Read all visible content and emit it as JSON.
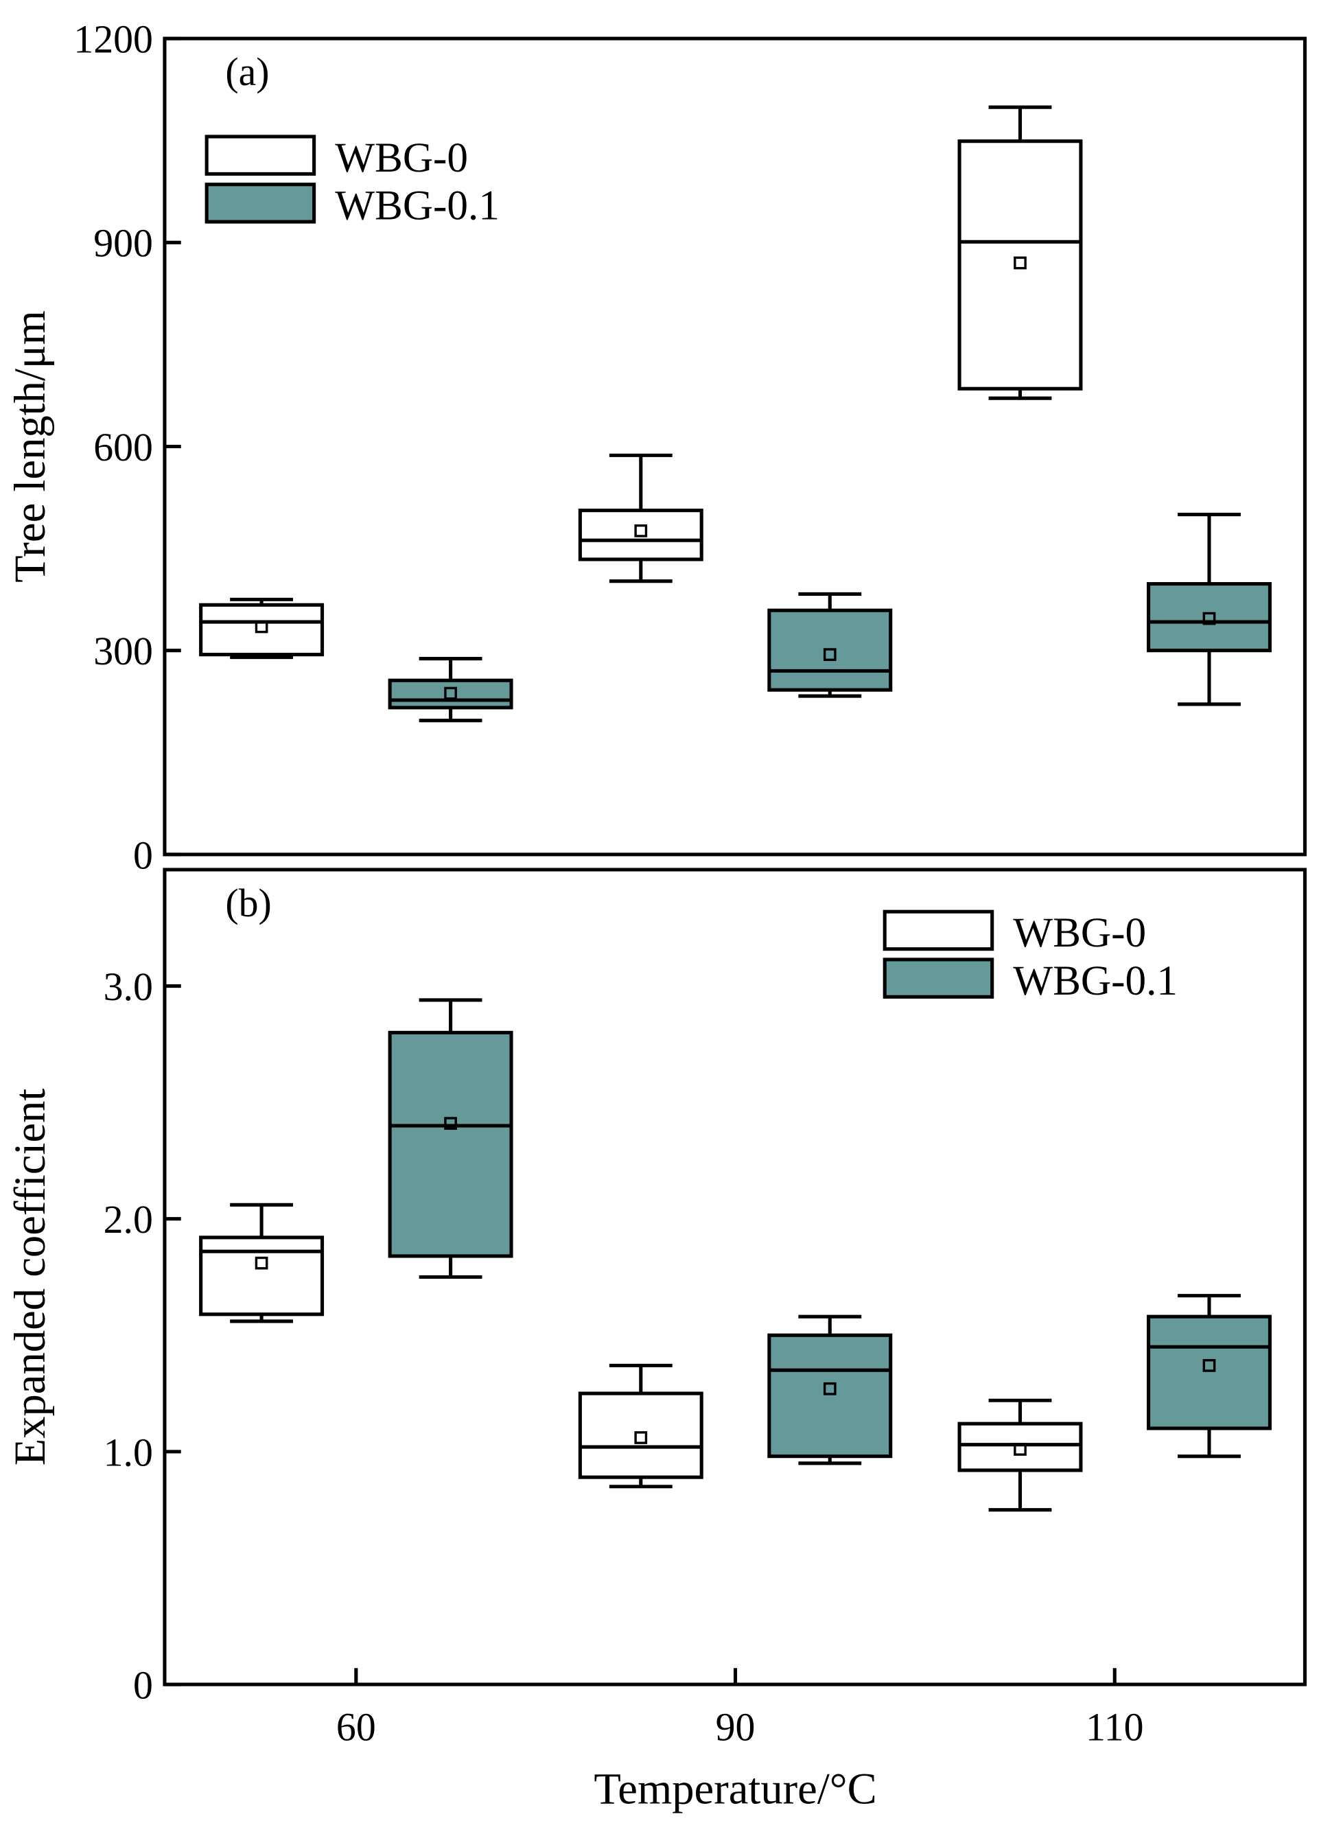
{
  "colors": {
    "WBG-0": "#ffffff",
    "WBG-0.1": "#669999",
    "stroke": "#000000"
  },
  "xlabel": "Temperature/°C",
  "chart_data": [
    {
      "type": "box",
      "panel_label": "(a)",
      "ylabel": "Tree length/μm",
      "ylim": [
        0,
        1200
      ],
      "yticks": [
        0,
        300,
        600,
        900,
        1200
      ],
      "categories": [
        "60",
        "90",
        "110"
      ],
      "legend": {
        "placement": "top-left",
        "entries": [
          "WBG-0",
          "WBG-0.1"
        ]
      },
      "series": [
        {
          "name": "WBG-0",
          "boxes": [
            {
              "whisker_low": 290,
              "q1": 294,
              "median": 342,
              "q3": 367,
              "whisker_high": 375,
              "mean": 335
            },
            {
              "whisker_low": 402,
              "q1": 434,
              "median": 462,
              "q3": 506,
              "whisker_high": 587,
              "mean": 476
            },
            {
              "whisker_low": 671,
              "q1": 685,
              "median": 901,
              "q3": 1049,
              "whisker_high": 1099,
              "mean": 870
            }
          ]
        },
        {
          "name": "WBG-0.1",
          "boxes": [
            {
              "whisker_low": 197,
              "q1": 216,
              "median": 227,
              "q3": 256,
              "whisker_high": 288,
              "mean": 237
            },
            {
              "whisker_low": 233,
              "q1": 242,
              "median": 270,
              "q3": 359,
              "whisker_high": 383,
              "mean": 294
            },
            {
              "whisker_low": 221,
              "q1": 300,
              "median": 342,
              "q3": 398,
              "whisker_high": 500,
              "mean": 347
            }
          ]
        }
      ]
    },
    {
      "type": "box",
      "panel_label": "(b)",
      "ylabel": "Expanded coefficient",
      "ylim": [
        0,
        3.5
      ],
      "yticks": [
        "0",
        "1.0",
        "2.0",
        "3.0"
      ],
      "categories": [
        "60",
        "90",
        "110"
      ],
      "legend": {
        "placement": "top-right",
        "entries": [
          "WBG-0",
          "WBG-0.1"
        ]
      },
      "series": [
        {
          "name": "WBG-0",
          "boxes": [
            {
              "whisker_low": 1.56,
              "q1": 1.59,
              "median": 1.86,
              "q3": 1.92,
              "whisker_high": 2.06,
              "mean": 1.81
            },
            {
              "whisker_low": 0.85,
              "q1": 0.89,
              "median": 1.02,
              "q3": 1.25,
              "whisker_high": 1.37,
              "mean": 1.06
            },
            {
              "whisker_low": 0.75,
              "q1": 0.92,
              "median": 1.03,
              "q3": 1.12,
              "whisker_high": 1.22,
              "mean": 1.01
            }
          ]
        },
        {
          "name": "WBG-0.1",
          "boxes": [
            {
              "whisker_low": 1.75,
              "q1": 1.84,
              "median": 2.4,
              "q3": 2.8,
              "whisker_high": 2.94,
              "mean": 2.41
            },
            {
              "whisker_low": 0.95,
              "q1": 0.98,
              "median": 1.35,
              "q3": 1.5,
              "whisker_high": 1.58,
              "mean": 1.27
            },
            {
              "whisker_low": 0.98,
              "q1": 1.1,
              "median": 1.45,
              "q3": 1.58,
              "whisker_high": 1.67,
              "mean": 1.37
            }
          ]
        }
      ]
    }
  ]
}
